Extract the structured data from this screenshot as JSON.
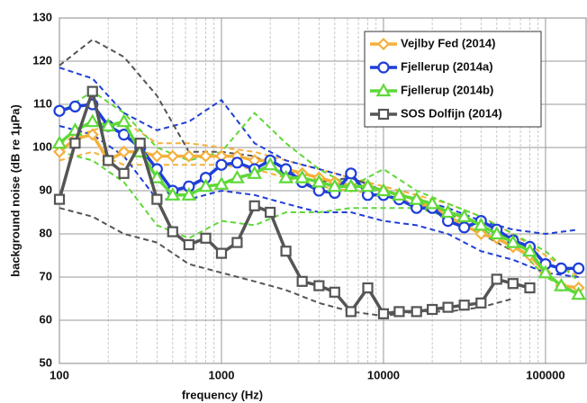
{
  "chart_data": {
    "type": "line",
    "x_label": "frequency (Hz)",
    "y_label": "background noise (dB re 1µPa)",
    "xlog": true,
    "grid": true,
    "minor_grid": true,
    "legend": "upper right",
    "xlim": [
      100,
      178000
    ],
    "ylim": [
      50,
      130
    ],
    "xticks": [
      100,
      1000,
      10000,
      100000
    ],
    "yticks": [
      50,
      60,
      70,
      80,
      90,
      100,
      110,
      120,
      130
    ],
    "series": [
      {
        "name": "Vejlby Fed (2014)",
        "color": "#f4b03c",
        "marker": "diamond",
        "x": [
          100,
          125,
          160,
          200,
          250,
          315,
          400,
          500,
          630,
          800,
          1000,
          1250,
          1600,
          2000,
          2500,
          3150,
          4000,
          5000,
          6300,
          8000,
          10000,
          12500,
          16000,
          20000,
          25000,
          31500,
          40000,
          50000,
          63000,
          80000,
          100000,
          125000,
          160000
        ],
        "values": [
          99,
          102,
          103,
          97,
          99,
          99,
          98,
          98,
          98,
          98,
          98,
          98,
          97,
          97,
          95,
          94,
          93,
          92,
          91,
          91,
          90,
          89,
          88,
          86,
          84,
          82,
          80,
          79,
          77,
          75,
          71,
          68,
          67.5
        ]
      },
      {
        "name": "Fjellerup (2014a)",
        "color": "#1f3fd8",
        "marker": "circle",
        "x": [
          100,
          125,
          160,
          200,
          250,
          315,
          400,
          500,
          630,
          800,
          1000,
          1250,
          1600,
          2000,
          2500,
          3150,
          4000,
          5000,
          6300,
          8000,
          10000,
          12500,
          16000,
          20000,
          25000,
          31500,
          40000,
          50000,
          63000,
          80000,
          100000,
          125000,
          160000
        ],
        "values": [
          108.5,
          109.5,
          110,
          105,
          103,
          100,
          95,
          90,
          91,
          93,
          96,
          96.5,
          95,
          97,
          95,
          92,
          90,
          89.5,
          94,
          89,
          89,
          88,
          86,
          86,
          83,
          81.5,
          83,
          81,
          78.5,
          77,
          73,
          72,
          72
        ]
      },
      {
        "name": "Fjellerup (2014b)",
        "color": "#5fd838",
        "marker": "triangle",
        "x": [
          100,
          125,
          160,
          200,
          250,
          315,
          400,
          500,
          630,
          800,
          1000,
          1250,
          1600,
          2000,
          2500,
          3150,
          4000,
          5000,
          6300,
          8000,
          10000,
          12500,
          16000,
          20000,
          25000,
          31500,
          40000,
          50000,
          63000,
          80000,
          100000,
          125000,
          160000
        ],
        "values": [
          101,
          104,
          106,
          105,
          106,
          99,
          93,
          89,
          89,
          91,
          91.5,
          93,
          94,
          96,
          93,
          93,
          92,
          91,
          91,
          91,
          90,
          89,
          88,
          87,
          85,
          84,
          82,
          80,
          78,
          76,
          71,
          68,
          66
        ]
      },
      {
        "name": "SOS Dolfijn (2014)",
        "color": "#555555",
        "marker": "square",
        "x": [
          100,
          125,
          160,
          200,
          250,
          315,
          400,
          500,
          630,
          800,
          1000,
          1250,
          1600,
          2000,
          2500,
          3150,
          4000,
          5000,
          6300,
          8000,
          10000,
          12500,
          16000,
          20000,
          25000,
          31500,
          40000,
          50000,
          63000,
          80000
        ],
        "values": [
          88,
          101,
          113,
          97,
          94,
          101,
          88,
          80.5,
          77.5,
          79,
          75.5,
          78,
          86.5,
          85,
          76,
          69,
          68,
          66.5,
          62,
          67.5,
          61.5,
          62,
          62,
          62.5,
          63,
          63.5,
          64,
          69.5,
          68.5,
          67.5
        ]
      }
    ],
    "range_lines": [
      {
        "color": "#f4b03c",
        "x": [
          100,
          160,
          250,
          400,
          630,
          1000,
          1600,
          2500,
          4000,
          6300,
          10000,
          16000,
          25000,
          40000,
          63000,
          100000,
          160000
        ],
        "values": [
          101,
          104,
          106,
          101,
          101,
          100,
          99,
          97,
          95,
          93,
          91,
          89,
          87,
          84,
          80,
          75,
          70
        ]
      },
      {
        "color": "#f4b03c",
        "x": [
          100,
          160,
          250,
          400,
          630,
          1000,
          1600,
          2500,
          4000,
          6300,
          10000,
          16000,
          25000,
          40000,
          63000,
          100000,
          160000
        ],
        "values": [
          97,
          99,
          96,
          96,
          96,
          96,
          95,
          93,
          91,
          90,
          89,
          87,
          85,
          82,
          78,
          70,
          67
        ]
      },
      {
        "color": "#1f3fd8",
        "x": [
          100,
          160,
          250,
          400,
          630,
          1000,
          1600,
          2500,
          4000,
          6300,
          10000,
          16000,
          25000,
          40000,
          63000,
          100000,
          160000
        ],
        "values": [
          118.5,
          116,
          108,
          104,
          106,
          111,
          101,
          97,
          95,
          93,
          90,
          88,
          86,
          83,
          81,
          80,
          81
        ]
      },
      {
        "color": "#1f3fd8",
        "x": [
          100,
          160,
          250,
          400,
          630,
          1000,
          1600,
          2500,
          4000,
          6300,
          10000,
          16000,
          25000,
          40000,
          63000,
          100000,
          160000
        ],
        "values": [
          105,
          103,
          98,
          88,
          88,
          90,
          89,
          87,
          85,
          85,
          83,
          82,
          80,
          76,
          74,
          71,
          70
        ]
      },
      {
        "color": "#5fd838",
        "x": [
          100,
          160,
          250,
          400,
          630,
          1000,
          1600,
          2500,
          4000,
          6300,
          10000,
          16000,
          25000,
          40000,
          63000,
          100000,
          160000
        ],
        "values": [
          108,
          113,
          108,
          100,
          97,
          99,
          108,
          101,
          95,
          91,
          95,
          90,
          87,
          84,
          80,
          76,
          69
        ]
      },
      {
        "color": "#5fd838",
        "x": [
          100,
          160,
          250,
          400,
          630,
          1000,
          1600,
          2500,
          4000,
          6300,
          10000,
          16000,
          25000,
          40000,
          63000,
          100000,
          160000
        ],
        "values": [
          99,
          97,
          92,
          82,
          79,
          83,
          82,
          85,
          85,
          86,
          86,
          86,
          84,
          81,
          78,
          70,
          66
        ]
      },
      {
        "color": "#555555",
        "x": [
          100,
          160,
          250,
          400,
          630,
          1000,
          1600,
          2500,
          4000,
          6300,
          10000,
          16000,
          25000,
          40000,
          63000,
          100000,
          160000
        ],
        "values": [
          119,
          125,
          121,
          112,
          99,
          99,
          98,
          94,
          92,
          93,
          90,
          88,
          85,
          80,
          76,
          null,
          null
        ]
      },
      {
        "color": "#555555",
        "x": [
          100,
          160,
          250,
          400,
          630,
          1000,
          1600,
          2500,
          4000,
          6300,
          10000,
          16000,
          25000,
          40000,
          63000,
          100000,
          160000
        ],
        "values": [
          86,
          84,
          80,
          78,
          73,
          71,
          69,
          67,
          64,
          62,
          61,
          62,
          62,
          63,
          65,
          null,
          null
        ]
      }
    ]
  }
}
